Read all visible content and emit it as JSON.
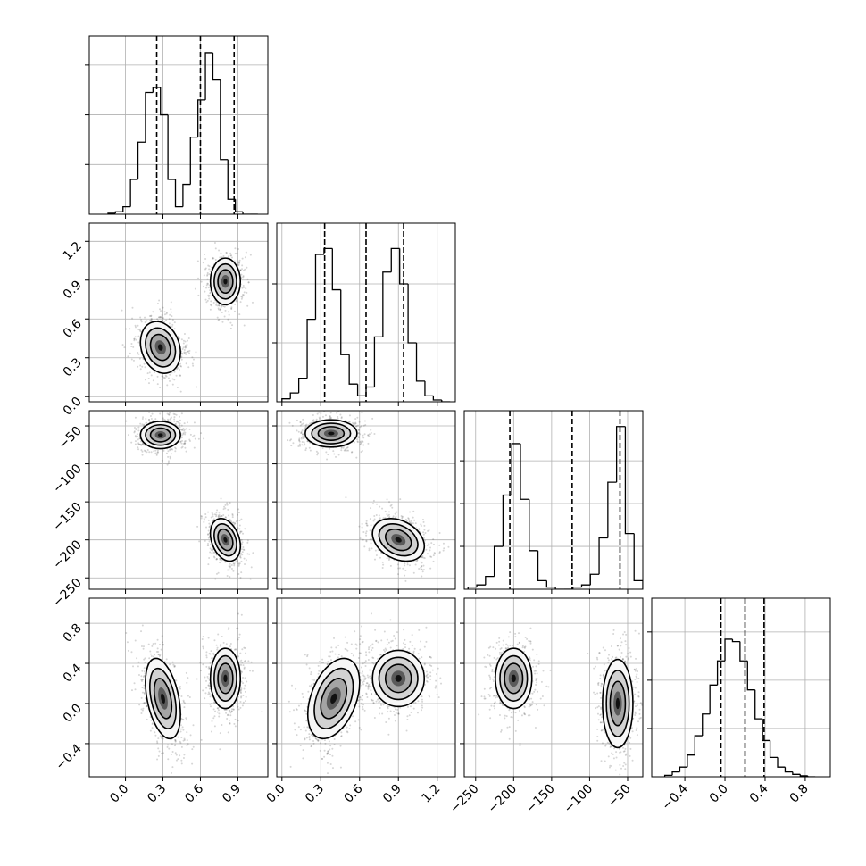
{
  "chart_data": {
    "type": "corner",
    "grid": true,
    "variables": [
      {
        "lim": [
          -0.29,
          1.14
        ],
        "ticks": [
          {
            "value": 0,
            "label": "0.0"
          },
          0.3,
          0.6,
          0.9
        ]
      },
      {
        "lim": [
          -0.04,
          1.34
        ],
        "ticks": [
          {
            "value": 0,
            "label": "0.0"
          },
          0.3,
          0.6,
          0.9,
          1.2
        ]
      },
      {
        "lim": [
          -265,
          -30
        ],
        "ticks": [
          {
            "value": -250,
            "label": "−250"
          },
          {
            "value": -200,
            "label": "−200"
          },
          {
            "value": -150,
            "label": "−150"
          },
          {
            "value": -100,
            "label": "−100"
          },
          {
            "value": -50,
            "label": "−50"
          }
        ]
      },
      {
        "lim": [
          -0.73,
          1.05
        ],
        "ticks": [
          {
            "value": -0.4,
            "label": "−0.4"
          },
          {
            "value": 0,
            "label": "0.0"
          },
          0.4,
          0.8
        ]
      }
    ],
    "histograms": [
      {
        "bins": [
          -0.14,
          -0.08,
          -0.02,
          0.04,
          0.1,
          0.16,
          0.22,
          0.28,
          0.34,
          0.4,
          0.46,
          0.52,
          0.58,
          0.64,
          0.7,
          0.76,
          0.82,
          0.88,
          0.94,
          1.0,
          1.06
        ],
        "counts": [
          0.02,
          0.05,
          0.15,
          0.7,
          1.45,
          2.45,
          2.55,
          2.0,
          0.7,
          0.15,
          0.6,
          1.55,
          2.3,
          3.25,
          2.7,
          1.1,
          0.3,
          0.05,
          0,
          0
        ],
        "ylim": [
          0,
          3.59
        ],
        "yticks": [
          1,
          2,
          3
        ],
        "quantiles": [
          0.25,
          0.6,
          0.87
        ]
      },
      {
        "bins": [
          0.0,
          0.065,
          0.13,
          0.195,
          0.26,
          0.325,
          0.39,
          0.455,
          0.52,
          0.585,
          0.65,
          0.715,
          0.78,
          0.845,
          0.91,
          0.975,
          1.04,
          1.105,
          1.17,
          1.235,
          1.3
        ],
        "counts": [
          0.05,
          0.15,
          0.4,
          1.4,
          2.5,
          2.6,
          1.9,
          0.8,
          0.3,
          0.1,
          0.25,
          1.1,
          2.2,
          2.6,
          2.0,
          1.0,
          0.35,
          0.1,
          0.03,
          0
        ],
        "ylim": [
          0,
          3.03
        ],
        "yticks": [
          1,
          2
        ],
        "quantiles": [
          0.33,
          0.65,
          0.94
        ]
      },
      {
        "bins": [
          -260,
          -248.5,
          -237,
          -225.5,
          -214,
          -202.5,
          -191,
          -179.5,
          -168,
          -156.5,
          -145,
          -133.5,
          -122,
          -110.5,
          -99,
          -87.5,
          -76,
          -64.5,
          -53,
          -41.5,
          -30
        ],
        "counts": [
          0.05,
          0.1,
          0.3,
          1.0,
          2.2,
          3.4,
          2.1,
          0.9,
          0.2,
          0.05,
          0,
          0,
          0.05,
          0.1,
          0.35,
          1.2,
          2.5,
          3.8,
          1.3,
          0.2
        ],
        "ylim": [
          0,
          4.17
        ],
        "yticks": [
          1,
          2,
          3
        ],
        "quantiles": [
          -205,
          -123,
          -60
        ]
      },
      {
        "bins": [
          -0.6,
          -0.525,
          -0.45,
          -0.375,
          -0.3,
          -0.225,
          -0.15,
          -0.075,
          0.0,
          0.075,
          0.15,
          0.225,
          0.3,
          0.375,
          0.45,
          0.525,
          0.6,
          0.675,
          0.75,
          0.825,
          0.9
        ],
        "counts": [
          0.03,
          0.1,
          0.2,
          0.45,
          0.85,
          1.3,
          1.9,
          2.4,
          2.85,
          2.8,
          2.4,
          1.8,
          1.2,
          0.75,
          0.4,
          0.2,
          0.1,
          0.05,
          0.02,
          0
        ],
        "ylim": [
          0,
          3.7
        ],
        "yticks": [
          1,
          2,
          3
        ],
        "quantiles": [
          -0.04,
          0.2,
          0.39
        ]
      }
    ],
    "pairs": [
      {
        "modes": [
          {
            "x": 0.28,
            "y": 0.38,
            "sx": 0.08,
            "sy": 0.1,
            "rho": -0.2
          },
          {
            "x": 0.8,
            "y": 0.89,
            "sx": 0.06,
            "sy": 0.09,
            "rho": 0
          }
        ]
      },
      {
        "modes": [
          {
            "x": 0.28,
            "y": -62,
            "sx": 0.08,
            "sy": 9,
            "rho": 0
          },
          {
            "x": 0.8,
            "y": -200,
            "sx": 0.06,
            "sy": 14,
            "rho": -0.3
          }
        ]
      },
      {
        "modes": [
          {
            "x": 0.38,
            "y": -60,
            "sx": 0.1,
            "sy": 9,
            "rho": 0
          },
          {
            "x": 0.9,
            "y": -200,
            "sx": 0.1,
            "sy": 14,
            "rho": -0.3
          }
        ]
      },
      {
        "modes": [
          {
            "x": 0.3,
            "y": 0.05,
            "sx": 0.07,
            "sy": 0.2,
            "rho": -0.4
          },
          {
            "x": 0.8,
            "y": 0.25,
            "sx": 0.06,
            "sy": 0.15,
            "rho": 0
          }
        ]
      },
      {
        "modes": [
          {
            "x": 0.4,
            "y": 0.05,
            "sx": 0.1,
            "sy": 0.2,
            "rho": 0.4
          },
          {
            "x": 0.9,
            "y": 0.25,
            "sx": 0.1,
            "sy": 0.14,
            "rho": 0
          }
        ]
      },
      {
        "modes": [
          {
            "x": -200,
            "y": 0.25,
            "sx": 12,
            "sy": 0.15,
            "rho": 0
          },
          {
            "x": -63,
            "y": 0.0,
            "sx": 10,
            "sy": 0.22,
            "rho": 0
          }
        ]
      }
    ]
  }
}
